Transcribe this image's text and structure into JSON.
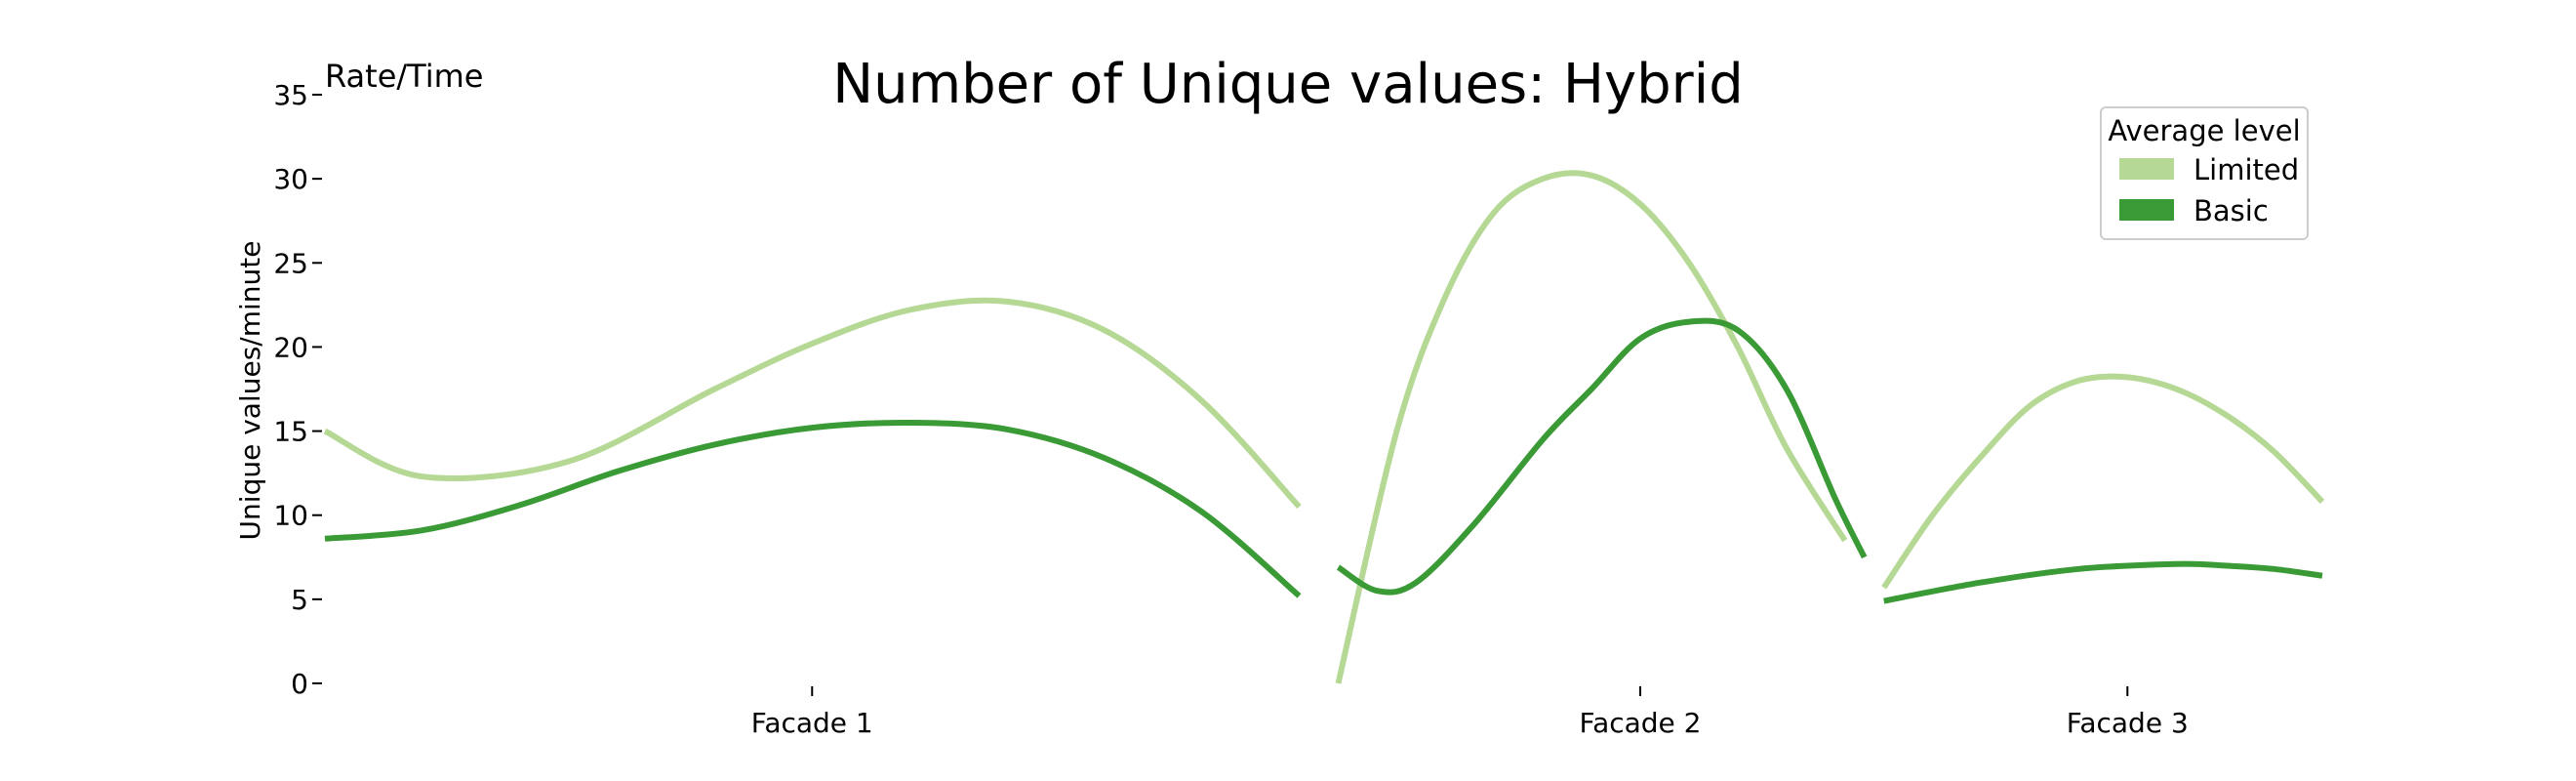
{
  "chart_data": {
    "type": "line",
    "title": "Number of Unique values: Hybrid",
    "corner_label": "Rate/Time",
    "ylabel": "Unique values/minute",
    "xlabel": "",
    "ylim": [
      0,
      35
    ],
    "yticks": [
      0,
      5,
      10,
      15,
      20,
      25,
      30,
      35
    ],
    "categories": [
      "Facade 1",
      "Facade 2",
      "Facade 3"
    ],
    "category_positions": [
      0.5,
      1.35,
      1.85
    ],
    "xlim": [
      0,
      2.05
    ],
    "grid": false,
    "legend": {
      "title": "Average level",
      "placement": "top-right",
      "entries": [
        {
          "name": "Limited",
          "color": "#b5d995"
        },
        {
          "name": "Basic",
          "color": "#3a9a35"
        }
      ]
    },
    "series": [
      {
        "name": "Limited",
        "color": "#b5d995",
        "segments": [
          {
            "x": [
              0.0,
              0.1,
              0.25,
              0.4,
              0.5,
              0.6,
              0.7,
              0.8,
              0.9,
              1.0
            ],
            "y": [
              15.0,
              12.3,
              13.2,
              17.5,
              20.2,
              22.2,
              22.7,
              21.0,
              16.8,
              10.5
            ]
          },
          {
            "x": [
              1.04,
              1.1,
              1.15,
              1.2,
              1.25,
              1.3,
              1.35,
              1.4,
              1.45,
              1.5,
              1.56
            ],
            "y": [
              0.0,
              15.0,
              23.0,
              28.0,
              30.0,
              30.2,
              28.5,
              25.0,
              20.0,
              14.0,
              8.5
            ]
          },
          {
            "x": [
              1.6,
              1.65,
              1.7,
              1.75,
              1.8,
              1.85,
              1.9,
              1.95,
              2.0,
              2.05
            ],
            "y": [
              5.7,
              10.0,
              13.5,
              16.5,
              18.0,
              18.2,
              17.5,
              16.0,
              13.8,
              10.8
            ]
          }
        ]
      },
      {
        "name": "Basic",
        "color": "#3a9a35",
        "segments": [
          {
            "x": [
              0.0,
              0.1,
              0.2,
              0.3,
              0.4,
              0.5,
              0.6,
              0.7,
              0.8,
              0.9,
              1.0
            ],
            "y": [
              8.6,
              9.1,
              10.6,
              12.6,
              14.2,
              15.2,
              15.5,
              15.1,
              13.4,
              10.2,
              5.2
            ]
          },
          {
            "x": [
              1.04,
              1.08,
              1.12,
              1.18,
              1.25,
              1.3,
              1.35,
              1.4,
              1.45,
              1.5,
              1.55,
              1.58
            ],
            "y": [
              6.9,
              5.5,
              6.0,
              9.5,
              14.5,
              17.5,
              20.5,
              21.5,
              21.0,
              17.5,
              11.0,
              7.5
            ]
          },
          {
            "x": [
              1.6,
              1.7,
              1.8,
              1.9,
              1.95,
              2.0,
              2.05
            ],
            "y": [
              4.9,
              6.0,
              6.8,
              7.1,
              7.0,
              6.8,
              6.4
            ]
          }
        ]
      }
    ]
  }
}
